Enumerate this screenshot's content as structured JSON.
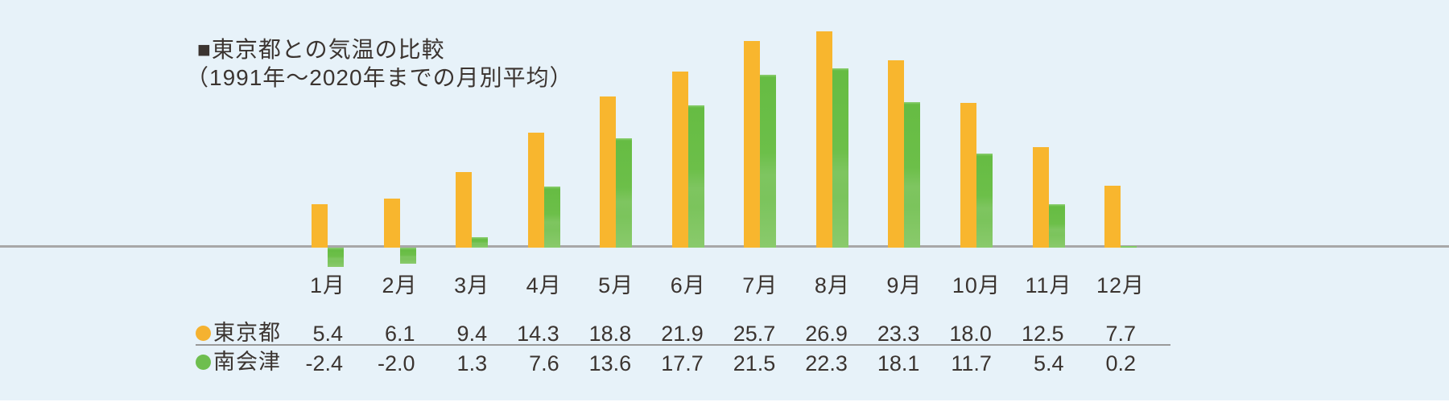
{
  "title": {
    "line1": "■東京都との気温の比較",
    "line2": "（1991年〜2020年までの月別平均）"
  },
  "chart_data": {
    "type": "bar",
    "categories": [
      "1月",
      "2月",
      "3月",
      "4月",
      "5月",
      "6月",
      "7月",
      "8月",
      "9月",
      "10月",
      "11月",
      "12月"
    ],
    "series": [
      {
        "name": "東京都",
        "color": "#f8b62e",
        "values": [
          5.4,
          6.1,
          9.4,
          14.3,
          18.8,
          21.9,
          25.7,
          26.9,
          23.3,
          18.0,
          12.5,
          7.7
        ]
      },
      {
        "name": "南会津",
        "color": "#6cbf49",
        "values": [
          -2.4,
          -2.0,
          1.3,
          7.6,
          13.6,
          17.7,
          21.5,
          22.3,
          18.1,
          11.7,
          5.4,
          0.2
        ]
      }
    ],
    "title": "■東京都との気温の比較（1991年〜2020年までの月別平均）",
    "xlabel": "",
    "ylabel": "",
    "ylim": [
      -3,
      28
    ],
    "grid": false,
    "legend_position": "table-row-headers-left",
    "baseline": 0
  },
  "table": {
    "rows": [
      {
        "label": "東京都",
        "marker_color": "#f5b230",
        "values": [
          "5.4",
          "6.1",
          "9.4",
          "14.3",
          "18.8",
          "21.9",
          "25.7",
          "26.9",
          "23.3",
          "18.0",
          "12.5",
          "7.7"
        ]
      },
      {
        "label": "南会津",
        "marker_color": "#6ebe4f",
        "values": [
          "-2.4",
          "-2.0",
          "1.3",
          "7.6",
          "13.6",
          "17.7",
          "21.5",
          "22.3",
          "18.1",
          "11.7",
          "5.4",
          "0.2"
        ]
      }
    ]
  },
  "colors": {
    "background": "#e7f2f9",
    "bar_orange": "#f8b62e",
    "bar_green": "#6cbf49",
    "bar_green_dark": "#66bc43",
    "bar_green_light": "#8aca6c",
    "bar_green_cap": "#8ecf74",
    "axis_line": "#a8a8a8",
    "separator_line": "#9a9a9a",
    "text": "#3b3430",
    "bottom_edge": "#ffffff"
  }
}
